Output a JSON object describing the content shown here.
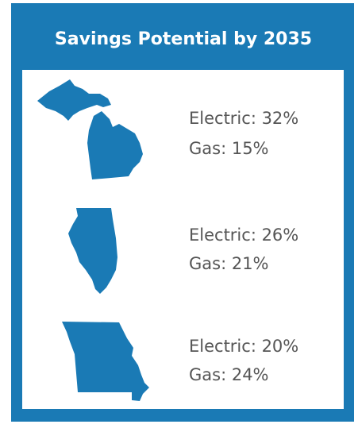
{
  "header": {
    "title": "Savings Potential by 2035"
  },
  "rows": [
    {
      "electric": "Electric: 32%",
      "gas": "Gas: 15%"
    },
    {
      "electric": "Electric: 26%",
      "gas": "Gas: 21%"
    },
    {
      "electric": "Electric: 20%",
      "gas": "Gas: 24%"
    }
  ]
}
